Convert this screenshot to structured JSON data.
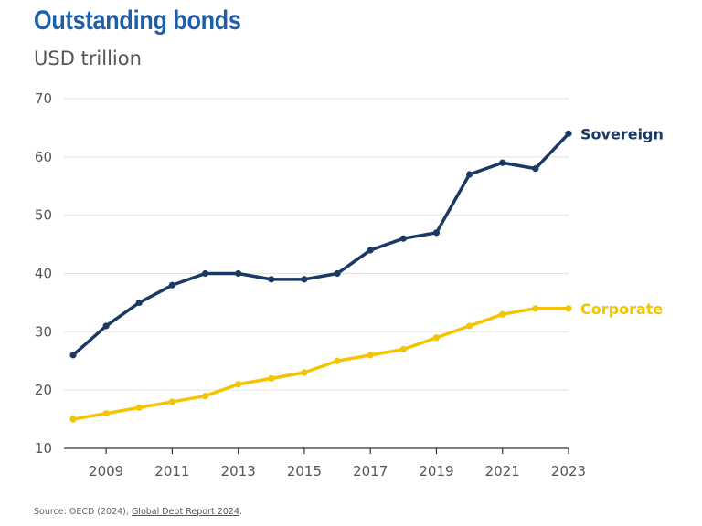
{
  "chart_data": {
    "type": "line",
    "title": "Outstanding bonds",
    "subtitle": "USD trillion",
    "xlabel": "",
    "ylabel": "USD trillion",
    "x": [
      2008,
      2009,
      2010,
      2011,
      2012,
      2013,
      2014,
      2015,
      2016,
      2017,
      2018,
      2019,
      2020,
      2021,
      2022,
      2023
    ],
    "x_ticks": [
      "2009",
      "2011",
      "2013",
      "2015",
      "2017",
      "2019",
      "2021",
      "2023"
    ],
    "y_ticks": [
      "10",
      "20",
      "30",
      "40",
      "50",
      "60",
      "70"
    ],
    "xlim": [
      2008,
      2023
    ],
    "ylim": [
      10,
      70
    ],
    "grid": "horizontal",
    "series": [
      {
        "name": "Sovereign",
        "color": "#1b3a63",
        "values": [
          26,
          31,
          35,
          38,
          40,
          40,
          39,
          39,
          40,
          44,
          46,
          47,
          57,
          59,
          58,
          64
        ]
      },
      {
        "name": "Corporate",
        "color": "#f5c400",
        "values": [
          15,
          16,
          17,
          18,
          19,
          21,
          22,
          23,
          25,
          26,
          27,
          29,
          31,
          33,
          34,
          34
        ]
      }
    ]
  },
  "source": {
    "prefix": "Source: OECD (2024), ",
    "link_text": "Global Debt Report 2024",
    "suffix": "."
  }
}
